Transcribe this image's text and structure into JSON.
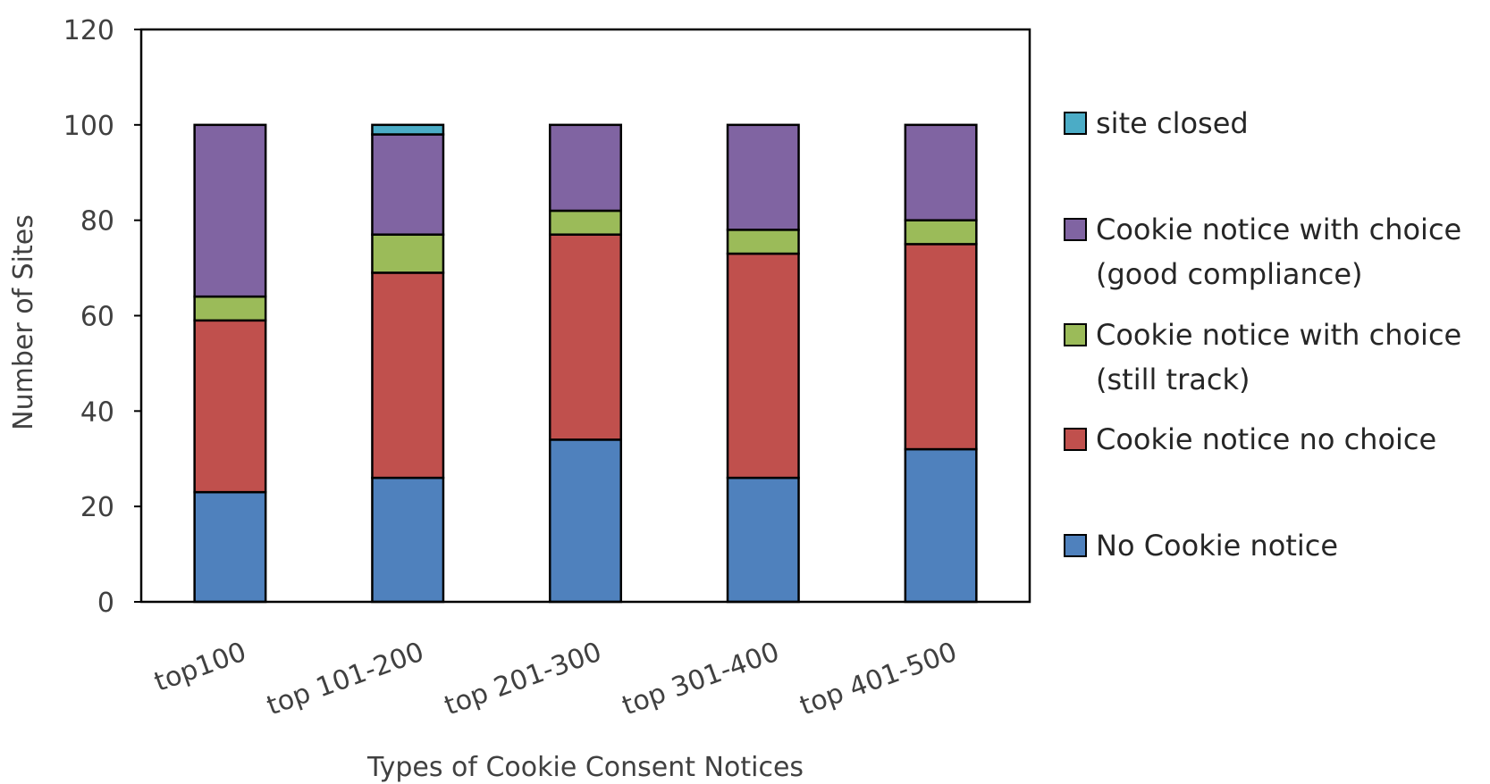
{
  "chart_data": {
    "type": "bar",
    "stacked": true,
    "categories": [
      "top100",
      "top 101-200",
      "top 201-300",
      "top 301-400",
      "top 401-500"
    ],
    "series": [
      {
        "name": "No Cookie notice",
        "color": "#4f81bd",
        "values": [
          23,
          26,
          34,
          26,
          32
        ]
      },
      {
        "name": "Cookie notice no choice",
        "color": "#c0504d",
        "values": [
          36,
          43,
          43,
          47,
          43
        ]
      },
      {
        "name": "Cookie notice with choice (still track)",
        "color": "#9bbb59",
        "values": [
          5,
          8,
          5,
          5,
          5
        ]
      },
      {
        "name": "Cookie notice with choice (good compliance)",
        "color": "#8064a2",
        "values": [
          36,
          21,
          18,
          22,
          20
        ]
      },
      {
        "name": "site closed",
        "color": "#4bacc6",
        "values": [
          0,
          2,
          0,
          0,
          0
        ]
      }
    ],
    "legend_lines": [
      [
        "site closed"
      ],
      [
        "Cookie notice with choice",
        "(good compliance)"
      ],
      [
        "Cookie notice with choice",
        "(still track)"
      ],
      [
        "Cookie notice no choice"
      ],
      [
        "No Cookie notice"
      ]
    ],
    "xlabel": "Types of Cookie Consent Notices",
    "ylabel": "Number of Sites",
    "ylim": [
      0,
      120
    ],
    "yticks": [
      0,
      20,
      40,
      60,
      80,
      100,
      120
    ],
    "legend_position": "right",
    "grid": false
  }
}
